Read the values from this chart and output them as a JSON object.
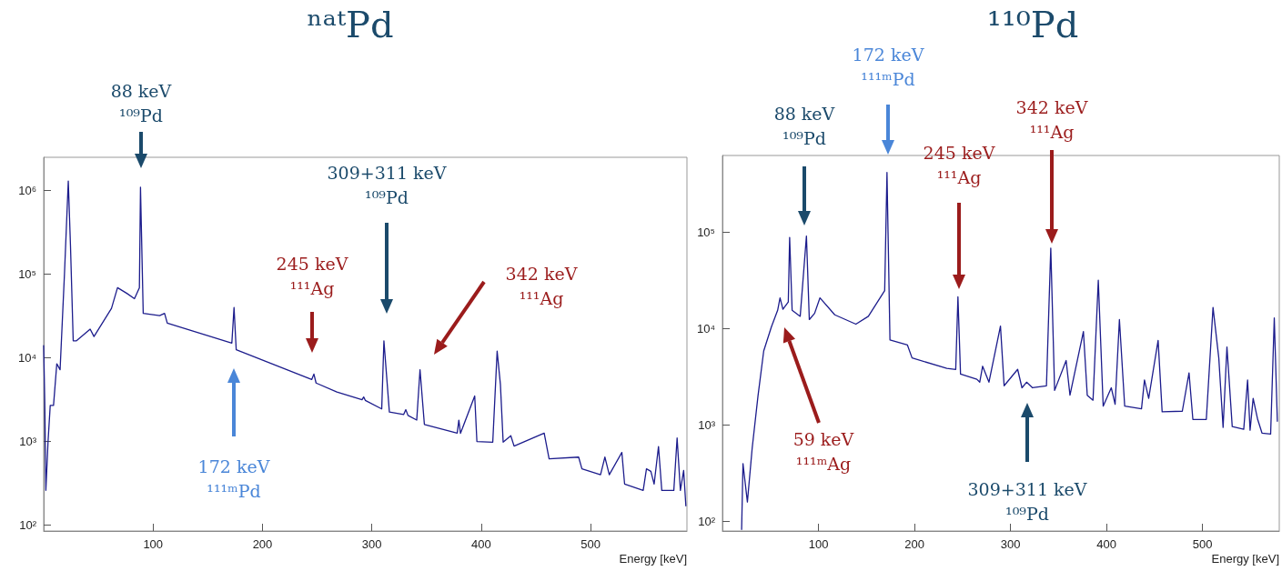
{
  "chart_data": [
    {
      "type": "line",
      "title": "ⁿᵃᵗPd",
      "xlabel": "Energy [keV]",
      "xlim": [
        0,
        588
      ],
      "xticks": [
        100,
        200,
        300,
        400,
        500
      ],
      "ylim": [
        85,
        2500000
      ],
      "log": "y",
      "yticks": [
        {
          "value": 100,
          "label": "10²"
        },
        {
          "value": 1000,
          "label": "10³"
        },
        {
          "value": 10000,
          "label": "10⁴"
        },
        {
          "value": 100000,
          "label": "10⁵"
        },
        {
          "value": 1000000,
          "label": "10⁶"
        }
      ],
      "grid": false,
      "marker": "none",
      "line_style": "solid",
      "series": [
        {
          "color": "#1c1c8c",
          "x": [
            0,
            1,
            2,
            4,
            6,
            9,
            12,
            15,
            19,
            22.5,
            24.5,
            27,
            30,
            42.5,
            46,
            62,
            67.5,
            76,
            83,
            87.5,
            88.5,
            91,
            106,
            110.5,
            113,
            172,
            174,
            176,
            245,
            247,
            249,
            268,
            291,
            292.5,
            294,
            309,
            311,
            316,
            329,
            331,
            333,
            341,
            344,
            348,
            378,
            379.5,
            381,
            394,
            396,
            410.5,
            414.5,
            417.5,
            420,
            427,
            430,
            457.5,
            462,
            489,
            492,
            509,
            513,
            517,
            528.5,
            531,
            548,
            551,
            555,
            558,
            562,
            565,
            576,
            579,
            582,
            585,
            587
          ],
          "values": [
            14000,
            2900,
            260,
            1000,
            2700,
            2700,
            8500,
            7200,
            100000,
            1300000,
            220000,
            16000,
            16000,
            22000,
            18000,
            39000,
            69000,
            59000,
            51000,
            69000,
            1100000,
            34000,
            32000,
            34000,
            26000,
            15000,
            40000,
            12500,
            5500,
            6400,
            5000,
            3900,
            3150,
            3400,
            3100,
            2450,
            16000,
            2250,
            2100,
            2400,
            2050,
            1800,
            7200,
            1600,
            1260,
            1800,
            1250,
            3500,
            1000,
            980,
            12000,
            4800,
            980,
            1170,
            880,
            1260,
            620,
            650,
            470,
            400,
            650,
            400,
            740,
            310,
            260,
            470,
            440,
            310,
            870,
            260,
            260,
            1100,
            260,
            450,
            170
          ]
        }
      ],
      "annotations": [
        "88 keV\n¹⁰⁹Pd",
        "309+311 keV\n¹⁰⁹Pd",
        "245 keV\n¹¹¹Ag",
        "342 keV\n¹¹¹Ag",
        "172 keV\n¹¹¹ᵐPd"
      ]
    },
    {
      "type": "line",
      "title": "¹¹⁰Pd",
      "xlabel": "Energy [keV]",
      "xlim": [
        0,
        580
      ],
      "xticks": [
        100,
        200,
        300,
        400,
        500
      ],
      "ylim": [
        80,
        630000
      ],
      "log": "y",
      "yticks": [
        {
          "value": 100,
          "label": "10²"
        },
        {
          "value": 1000,
          "label": "10³"
        },
        {
          "value": 10000,
          "label": "10⁴"
        },
        {
          "value": 100000,
          "label": "10⁵"
        }
      ],
      "grid": false,
      "marker": "none",
      "line_style": "solid",
      "series": [
        {
          "color": "#1c1c8c",
          "x": [
            20,
            21.4,
            26,
            31,
            37,
            43,
            51,
            57.5,
            60,
            63,
            68.6,
            70,
            72.6,
            81,
            87.5,
            90.5,
            96,
            101.6,
            117,
            139,
            152,
            169,
            171.4,
            174.5,
            192.7,
            197.5,
            233.7,
            243,
            245.3,
            248,
            265,
            268,
            271,
            277.6,
            289.6,
            293.4,
            307.5,
            312,
            316.8,
            323,
            337.5,
            342,
            346,
            358,
            362,
            376,
            380,
            386,
            391.5,
            396.6,
            405,
            409,
            413.5,
            419,
            436.5,
            439.6,
            444,
            453.8,
            458,
            479,
            486,
            490,
            504,
            511,
            517,
            521.5,
            525.5,
            531,
            543,
            547,
            549.6,
            552.8,
            557.5,
            562,
            571,
            574.8,
            578
          ],
          "values": [
            83,
            400,
            160,
            580,
            2000,
            5900,
            10500,
            15600,
            21000,
            16000,
            19000,
            89000,
            15600,
            13500,
            92000,
            12500,
            14500,
            21000,
            14000,
            11200,
            13500,
            25000,
            420000,
            7700,
            6800,
            5000,
            3900,
            3800,
            21500,
            3400,
            3000,
            2800,
            4100,
            2800,
            10700,
            2570,
            3800,
            2450,
            2800,
            2450,
            2570,
            69000,
            2300,
            4700,
            2050,
            9400,
            2050,
            1820,
            32000,
            1580,
            2450,
            1650,
            12500,
            1580,
            1480,
            2950,
            1900,
            7600,
            1380,
            1400,
            3500,
            1150,
            1150,
            16700,
            5000,
            950,
            6500,
            970,
            910,
            2950,
            890,
            1900,
            1150,
            830,
            810,
            13000,
            1100
          ]
        }
      ],
      "annotations": [
        "88 keV\n¹⁰⁹Pd",
        "172 keV\n¹¹¹ᵐPd",
        "245 keV\n¹¹¹Ag",
        "342 keV\n¹¹¹Ag",
        "59 keV\n¹¹¹ᵐAg",
        "309+311 keV\n¹⁰⁹Pd"
      ]
    }
  ]
}
